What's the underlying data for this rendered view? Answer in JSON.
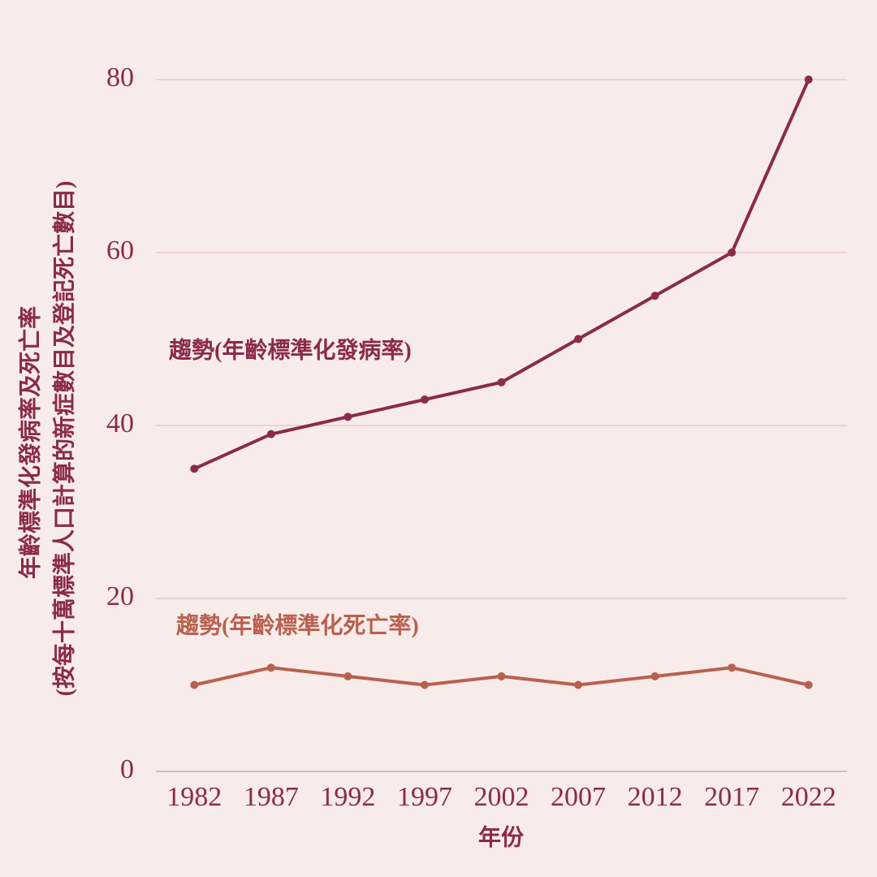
{
  "chart_data": {
    "type": "line",
    "x_label": "年份",
    "y_label": [
      "年齡標準化發病率及死亡率",
      "(按每十萬標準人口計算的新症數目及登記死亡數目)"
    ],
    "x": [
      1982,
      1987,
      1992,
      1997,
      2002,
      2007,
      2012,
      2017,
      2022
    ],
    "xlim": [
      1979.5,
      2024.5
    ],
    "xticks": [
      1982,
      1987,
      1992,
      1997,
      2002,
      2007,
      2012,
      2017,
      2022
    ],
    "ylim": [
      0,
      80
    ],
    "yticks": [
      0,
      20,
      40,
      60,
      80
    ],
    "grid": true,
    "series": [
      {
        "name": "趨勢(年齡標準化發病率)",
        "color": "#8b2a4a",
        "values": [
          35,
          39,
          41,
          43,
          45,
          50,
          55,
          60,
          80
        ]
      },
      {
        "name": "趨勢(年齡標準化死亡率)",
        "color": "#b9604f",
        "values": [
          10,
          12,
          11,
          10,
          11,
          10,
          11,
          12,
          10
        ]
      }
    ]
  }
}
